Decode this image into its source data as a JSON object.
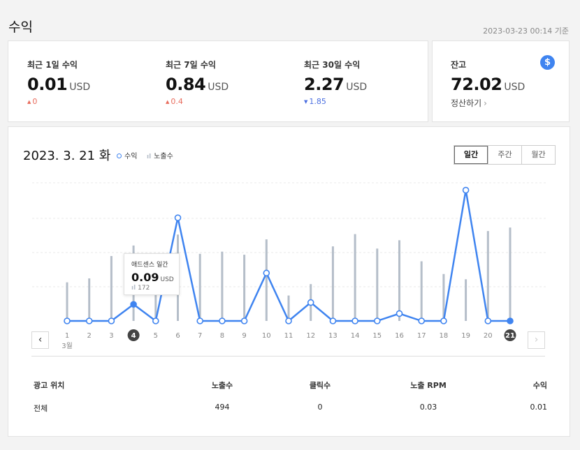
{
  "page": {
    "title": "수익",
    "as_of": "2023-03-23 00:14 기준"
  },
  "summary": [
    {
      "label": "최근 1일 수익",
      "value": "0.01",
      "unit": "USD",
      "delta": "0",
      "direction": "up"
    },
    {
      "label": "최근 7일 수익",
      "value": "0.84",
      "unit": "USD",
      "delta": "0.4",
      "direction": "up"
    },
    {
      "label": "최근 30일 수익",
      "value": "2.27",
      "unit": "USD",
      "delta": "1.85",
      "direction": "down"
    }
  ],
  "balance": {
    "label": "잔고",
    "value": "72.02",
    "unit": "USD",
    "action": "정산하기",
    "icon": "dollar-icon",
    "icon_glyph": "$"
  },
  "chart": {
    "date": "2023. 3. 21 화",
    "legend": {
      "earnings": "수익",
      "impressions": "노출수"
    },
    "tabs": [
      "일간",
      "주간",
      "월간"
    ],
    "active_tab": "일간",
    "month_label": "3월",
    "nav": {
      "prev": "‹",
      "next": "›"
    },
    "tooltip": {
      "title": "애드센스 일간",
      "value": "0.09",
      "unit": "USD",
      "impressions": "172"
    }
  },
  "chart_data": {
    "type": "line",
    "x": [
      "1",
      "2",
      "3",
      "4",
      "5",
      "6",
      "7",
      "8",
      "9",
      "10",
      "11",
      "12",
      "13",
      "14",
      "15",
      "16",
      "17",
      "18",
      "19",
      "20",
      "21"
    ],
    "series": [
      {
        "name": "수익",
        "type": "line",
        "values": [
          0,
          0,
          0,
          0.09,
          0,
          0.56,
          0,
          0,
          0,
          0.26,
          0,
          0.1,
          0,
          0,
          0,
          0.04,
          0,
          0,
          0.71,
          0,
          0
        ]
      },
      {
        "name": "노출수",
        "type": "bar",
        "values": [
          88,
          97,
          148,
          172,
          64,
          197,
          153,
          158,
          151,
          186,
          58,
          84,
          170,
          198,
          165,
          184,
          136,
          107,
          95,
          205,
          213
        ]
      }
    ],
    "selected_index": 3,
    "highlighted_index": 20,
    "earnings_max": 0.75,
    "impressions_max": 315,
    "colors": {
      "line": "#3f84f0",
      "bar": "#b5bec9",
      "grid": "#e8e8e8",
      "marker_fill": "#ffffff"
    }
  },
  "table": {
    "headers": [
      "광고 위치",
      "노출수",
      "클릭수",
      "노출 RPM",
      "수익"
    ],
    "rows": [
      [
        "전체",
        "494",
        "0",
        "0.03",
        "0.01"
      ]
    ]
  }
}
